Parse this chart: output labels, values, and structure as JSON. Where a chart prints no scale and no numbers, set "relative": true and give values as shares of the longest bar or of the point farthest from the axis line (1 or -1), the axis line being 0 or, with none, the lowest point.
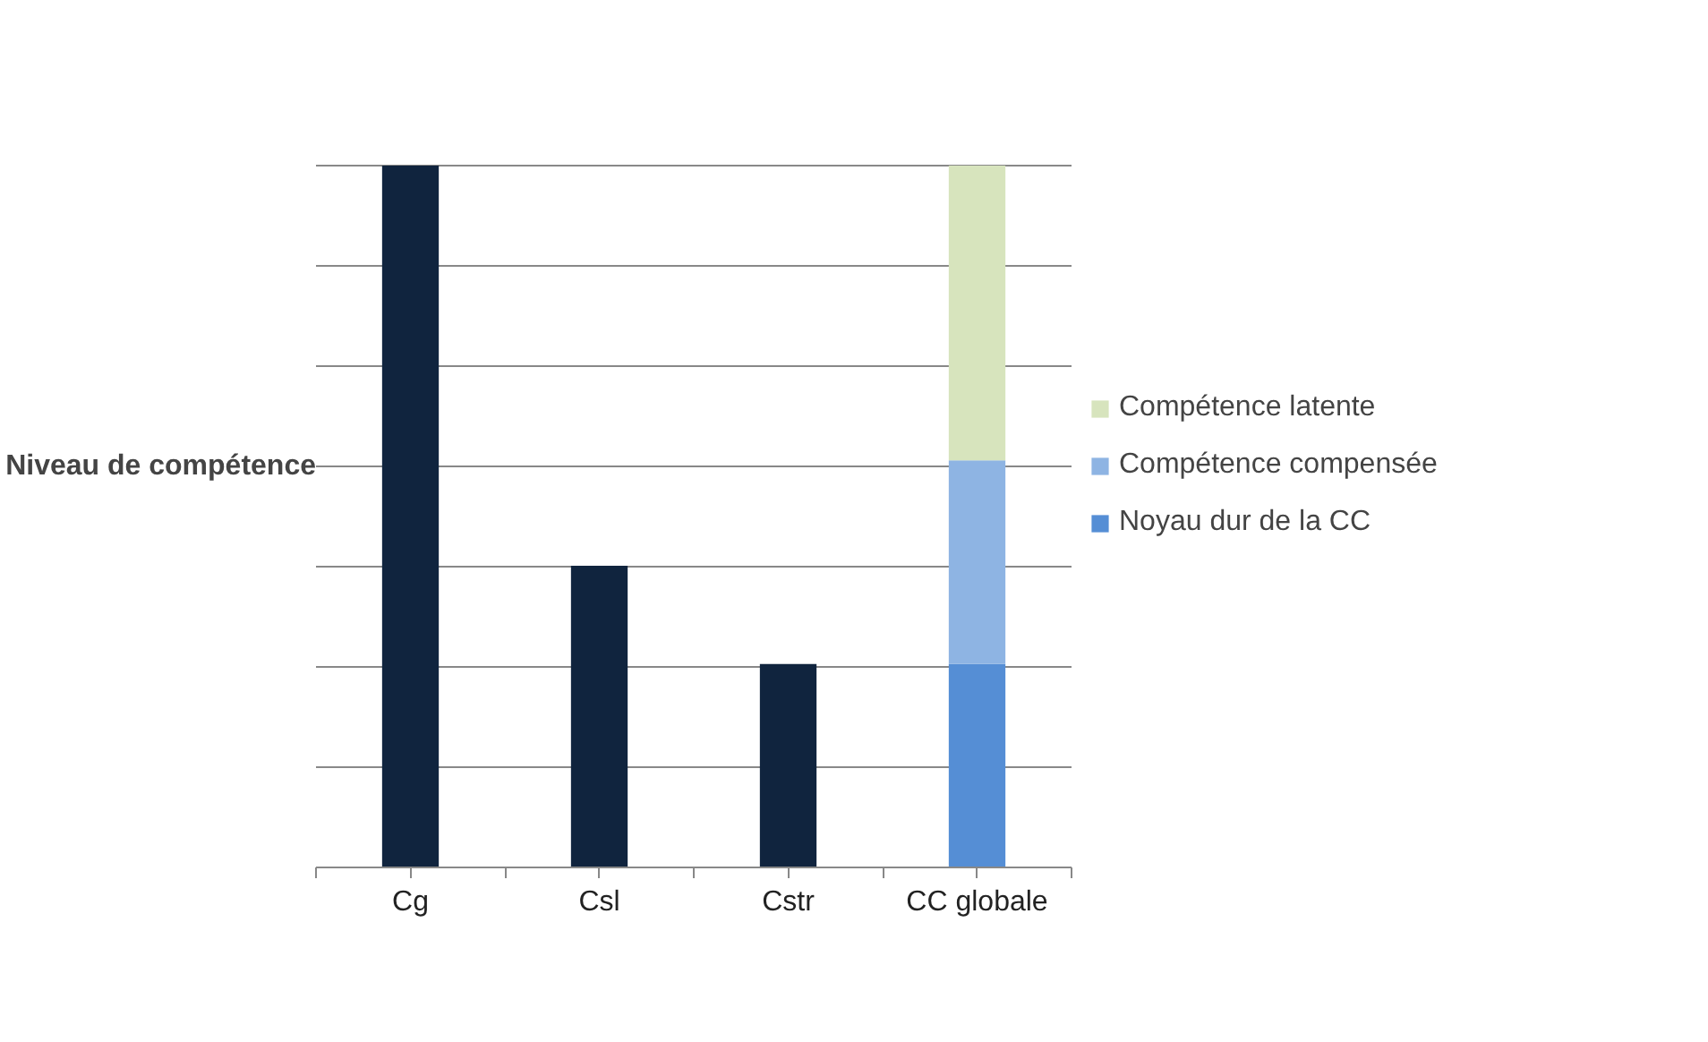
{
  "chart_data": {
    "type": "bar",
    "ylabel": "Niveau de compétence",
    "categories": [
      "Cg",
      "Csl",
      "Cstr",
      "CC globale"
    ],
    "relative": true,
    "stacked": true,
    "grid": "y",
    "legend": "right",
    "series": [
      {
        "color": "#10243e",
        "values": [
          1,
          0.43,
          0.29,
          null
        ]
      },
      {
        "name": "Noyau dur de la CC",
        "color": "#558ed5",
        "values": [
          null,
          null,
          null,
          0.29
        ]
      },
      {
        "name": "Compétence compensée",
        "color": "#8eb4e3",
        "values": [
          null,
          null,
          null,
          0.29
        ]
      },
      {
        "name": "Compétence latente",
        "color": "#d7e4bd",
        "values": [
          null,
          null,
          null,
          0.42
        ]
      }
    ]
  }
}
